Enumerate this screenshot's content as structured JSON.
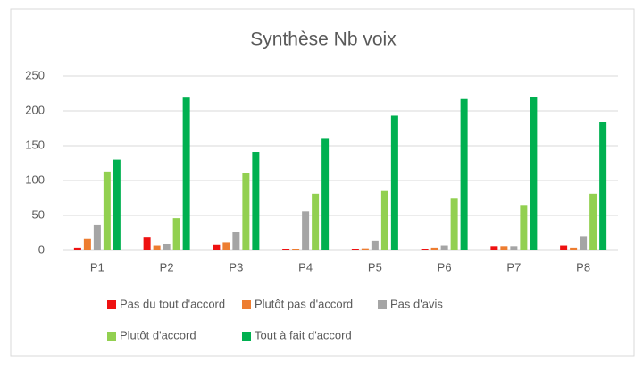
{
  "chart_data": {
    "type": "bar",
    "title": "Synthèse Nb voix",
    "categories": [
      "P1",
      "P2",
      "P3",
      "P4",
      "P5",
      "P6",
      "P7",
      "P8"
    ],
    "series": [
      {
        "name": "Pas du tout d'accord",
        "color": "#ee1111",
        "values": [
          4,
          19,
          8,
          2,
          2,
          2,
          6,
          7
        ]
      },
      {
        "name": "Plutôt pas d'accord",
        "color": "#ed7d31",
        "values": [
          17,
          7,
          11,
          2,
          3,
          4,
          6,
          4
        ]
      },
      {
        "name": "Pas d'avis",
        "color": "#a5a5a5",
        "values": [
          36,
          9,
          26,
          56,
          13,
          7,
          6,
          20
        ]
      },
      {
        "name": "Plutôt d'accord",
        "color": "#92d050",
        "values": [
          113,
          46,
          111,
          81,
          85,
          74,
          65,
          81
        ]
      },
      {
        "name": "Tout à fait d'accord",
        "color": "#00b050",
        "values": [
          130,
          219,
          141,
          161,
          193,
          217,
          220,
          184
        ]
      }
    ],
    "ylim": [
      0,
      250
    ],
    "yticks": [
      0,
      50,
      100,
      150,
      200,
      250
    ],
    "grid": true,
    "legend": "bottom"
  }
}
